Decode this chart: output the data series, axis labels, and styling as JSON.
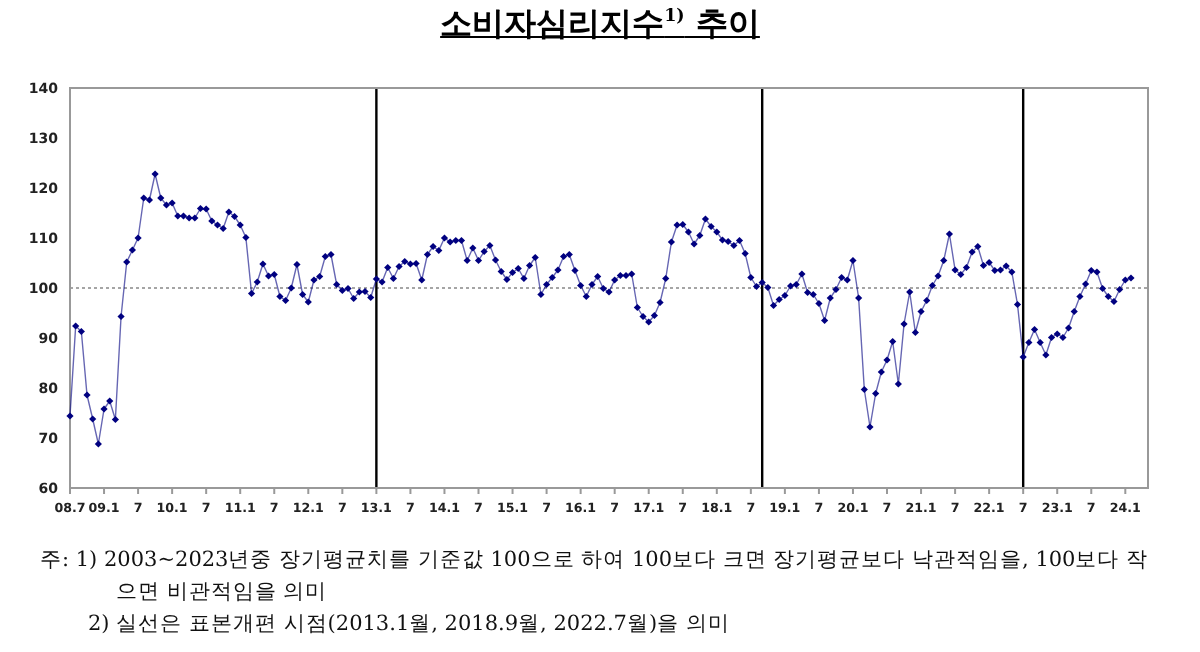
{
  "chart_data": {
    "type": "line",
    "title": "소비자심리지수$^{1)}$ 추이",
    "annotations": [
      "주: 1) 2003~2023년중 장기평균치를 기준값 100으로 하여 100보다 크면 장기평균보다 낙관적임을, 100보다 작으면 비관적임을 의미",
      "2) 실선은 표본개편 시점(2013.1월, 2018.9월, 2022.7월)을 의미"
    ],
    "x": [
      "2008-07",
      "2008-08",
      "2008-09",
      "2008-10",
      "2008-11",
      "2008-12",
      "2009-01",
      "2009-02",
      "2009-03",
      "2009-04",
      "2009-05",
      "2009-06",
      "2009-07",
      "2009-08",
      "2009-09",
      "2009-10",
      "2009-11",
      "2009-12",
      "2010-01",
      "2010-02",
      "2010-03",
      "2010-04",
      "2010-05",
      "2010-06",
      "2010-07",
      "2010-08",
      "2010-09",
      "2010-10",
      "2010-11",
      "2010-12",
      "2011-01",
      "2011-02",
      "2011-03",
      "2011-04",
      "2011-05",
      "2011-06",
      "2011-07",
      "2011-08",
      "2011-09",
      "2011-10",
      "2011-11",
      "2011-12",
      "2012-01",
      "2012-02",
      "2012-03",
      "2012-04",
      "2012-05",
      "2012-06",
      "2012-07",
      "2012-08",
      "2012-09",
      "2012-10",
      "2012-11",
      "2012-12",
      "2013-01",
      "2013-02",
      "2013-03",
      "2013-04",
      "2013-05",
      "2013-06",
      "2013-07",
      "2013-08",
      "2013-09",
      "2013-10",
      "2013-11",
      "2013-12",
      "2014-01",
      "2014-02",
      "2014-03",
      "2014-04",
      "2014-05",
      "2014-06",
      "2014-07",
      "2014-08",
      "2014-09",
      "2014-10",
      "2014-11",
      "2014-12",
      "2015-01",
      "2015-02",
      "2015-03",
      "2015-04",
      "2015-05",
      "2015-06",
      "2015-07",
      "2015-08",
      "2015-09",
      "2015-10",
      "2015-11",
      "2015-12",
      "2016-01",
      "2016-02",
      "2016-03",
      "2016-04",
      "2016-05",
      "2016-06",
      "2016-07",
      "2016-08",
      "2016-09",
      "2016-10",
      "2016-11",
      "2016-12",
      "2017-01",
      "2017-02",
      "2017-03",
      "2017-04",
      "2017-05",
      "2017-06",
      "2017-07",
      "2017-08",
      "2017-09",
      "2017-10",
      "2017-11",
      "2017-12",
      "2018-01",
      "2018-02",
      "2018-03",
      "2018-04",
      "2018-05",
      "2018-06",
      "2018-07",
      "2018-08",
      "2018-09",
      "2018-10",
      "2018-11",
      "2018-12",
      "2019-01",
      "2019-02",
      "2019-03",
      "2019-04",
      "2019-05",
      "2019-06",
      "2019-07",
      "2019-08",
      "2019-09",
      "2019-10",
      "2019-11",
      "2019-12",
      "2020-01",
      "2020-02",
      "2020-03",
      "2020-04",
      "2020-05",
      "2020-06",
      "2020-07",
      "2020-08",
      "2020-09",
      "2020-10",
      "2020-11",
      "2020-12",
      "2021-01",
      "2021-02",
      "2021-03",
      "2021-04",
      "2021-05",
      "2021-06",
      "2021-07",
      "2021-08",
      "2021-09",
      "2021-10",
      "2021-11",
      "2021-12",
      "2022-01",
      "2022-02",
      "2022-03",
      "2022-04",
      "2022-05",
      "2022-06",
      "2022-07",
      "2022-08",
      "2022-09",
      "2022-10",
      "2022-11",
      "2022-12",
      "2023-01",
      "2023-02",
      "2023-03",
      "2023-04",
      "2023-05",
      "2023-06",
      "2023-07",
      "2023-08",
      "2023-09",
      "2023-10",
      "2023-11",
      "2023-12",
      "2024-01",
      "2024-02"
    ],
    "values": [
      74.4,
      92.4,
      91.3,
      78.6,
      73.8,
      68.8,
      75.8,
      77.4,
      73.7,
      94.3,
      105.2,
      107.6,
      110,
      118,
      117.6,
      122.8,
      118,
      116.6,
      117,
      114.4,
      114.4,
      114,
      114,
      115.9,
      115.8,
      113.4,
      112.6,
      111.9,
      115.2,
      114.3,
      112.6,
      110.1,
      98.9,
      101.2,
      104.8,
      102.4,
      102.7,
      98.3,
      97.5,
      100,
      104.7,
      98.7,
      97.2,
      101.6,
      102.3,
      106.3,
      106.7,
      100.7,
      99.5,
      99.9,
      97.9,
      99.2,
      99.3,
      98.1,
      101.8,
      101.2,
      104.1,
      101.9,
      104.3,
      105.3,
      104.8,
      104.9,
      101.6,
      106.7,
      108.3,
      107.5,
      110,
      109.2,
      109.5,
      109.5,
      105.5,
      108,
      105.5,
      107.3,
      108.5,
      105.6,
      103.3,
      101.7,
      103.1,
      103.9,
      101.9,
      104.5,
      106.1,
      98.7,
      100.7,
      102.1,
      103.6,
      106.3,
      106.7,
      103.5,
      100.5,
      98.3,
      100.7,
      102.3,
      99.9,
      99.2,
      101.6,
      102.5,
      102.5,
      102.8,
      96.1,
      94.3,
      93.2,
      94.5,
      97.1,
      101.9,
      109.2,
      112.6,
      112.7,
      111.2,
      108.8,
      110.5,
      113.8,
      112.3,
      111.2,
      109.6,
      109.3,
      108.5,
      109.5,
      106.9,
      102.1,
      100.3,
      101.1,
      100.1,
      96.5,
      97.7,
      98.5,
      100.4,
      100.7,
      102.8,
      99.1,
      98.7,
      96.9,
      93.5,
      98,
      99.7,
      102.1,
      101.6,
      105.5,
      98,
      79.7,
      72.2,
      78.9,
      83.2,
      85.6,
      89.3,
      80.8,
      92.8,
      99.2,
      91.1,
      95.3,
      97.5,
      100.5,
      102.4,
      105.5,
      110.8,
      103.6,
      102.7,
      104.1,
      107.2,
      108.3,
      104.5,
      105.1,
      103.5,
      103.6,
      104.4,
      103.2,
      96.7,
      86.2,
      89.1,
      91.7,
      89.1,
      86.6,
      90.1,
      90.8,
      90.1,
      92,
      95.3,
      98.3,
      100.8,
      103.5,
      103.2,
      99.9,
      98.3,
      97.3,
      99.7,
      101.6,
      102
    ],
    "color": "#000080",
    "marker": "diamond",
    "line_style": "solid",
    "xlim": [
      "2008-07",
      "2024-05"
    ],
    "xticks": [
      {
        "value": "2008-07",
        "label": "08.7"
      },
      {
        "value": "2009-01",
        "label": "09.1"
      },
      {
        "value": "2009-07",
        "label": "7"
      },
      {
        "value": "2010-01",
        "label": "10.1"
      },
      {
        "value": "2010-07",
        "label": "7"
      },
      {
        "value": "2011-01",
        "label": "11.1"
      },
      {
        "value": "2011-07",
        "label": "7"
      },
      {
        "value": "2012-01",
        "label": "12.1"
      },
      {
        "value": "2012-07",
        "label": "7"
      },
      {
        "value": "2013-01",
        "label": "13.1"
      },
      {
        "value": "2013-07",
        "label": "7"
      },
      {
        "value": "2014-01",
        "label": "14.1"
      },
      {
        "value": "2014-07",
        "label": "7"
      },
      {
        "value": "2015-01",
        "label": "15.1"
      },
      {
        "value": "2015-07",
        "label": "7"
      },
      {
        "value": "2016-01",
        "label": "16.1"
      },
      {
        "value": "2016-07",
        "label": "7"
      },
      {
        "value": "2017-01",
        "label": "17.1"
      },
      {
        "value": "2017-07",
        "label": "7"
      },
      {
        "value": "2018-01",
        "label": "18.1"
      },
      {
        "value": "2018-07",
        "label": "7"
      },
      {
        "value": "2019-01",
        "label": "19.1"
      },
      {
        "value": "2019-07",
        "label": "7"
      },
      {
        "value": "2020-01",
        "label": "20.1"
      },
      {
        "value": "2020-07",
        "label": "7"
      },
      {
        "value": "2021-01",
        "label": "21.1"
      },
      {
        "value": "2021-07",
        "label": "7"
      },
      {
        "value": "2022-01",
        "label": "22.1"
      },
      {
        "value": "2022-07",
        "label": "7"
      },
      {
        "value": "2023-01",
        "label": "23.1"
      },
      {
        "value": "2023-07",
        "label": "7"
      },
      {
        "value": "2024-01",
        "label": "24.1"
      }
    ],
    "ylim": [
      60,
      140
    ],
    "yticks": [
      60,
      70,
      80,
      90,
      100,
      110,
      120,
      130,
      140
    ],
    "ref_lines": [
      {
        "axis": "y",
        "value": 100,
        "color": "#888888",
        "line_style": "dotted"
      },
      {
        "axis": "x",
        "value": "2013-01",
        "color": "#000000",
        "line_style": "solid"
      },
      {
        "axis": "x",
        "value": "2018-09",
        "color": "#000000",
        "line_style": "solid"
      },
      {
        "axis": "x",
        "value": "2022-07",
        "color": "#000000",
        "line_style": "solid"
      }
    ],
    "grid": false
  }
}
